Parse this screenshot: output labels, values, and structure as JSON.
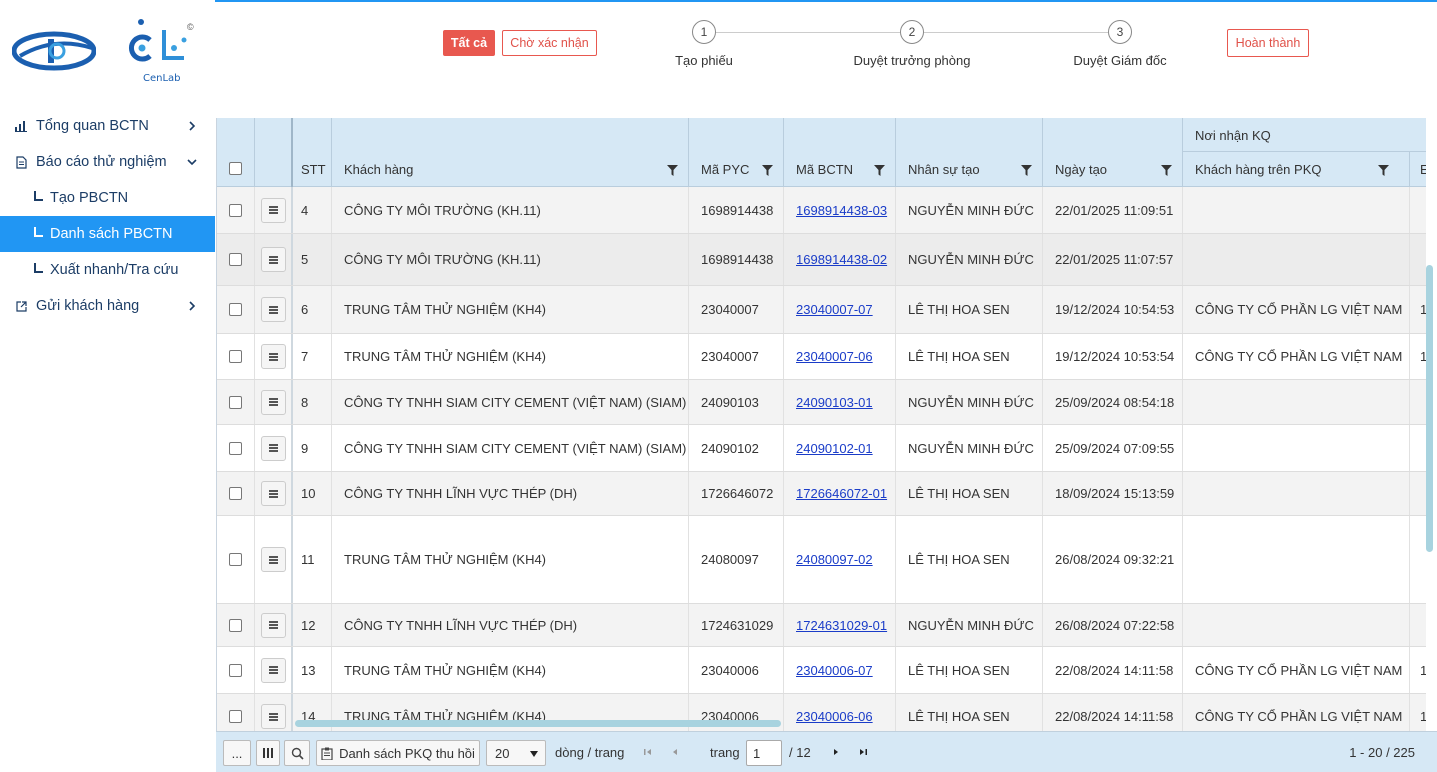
{
  "logo": {
    "brand_text": "CenLab",
    "copyright_mark": "©"
  },
  "sidebar": {
    "items": [
      {
        "label": "Tổng quan BCTN",
        "icon": "bar-chart-icon",
        "chevron": "chevron-right-icon"
      },
      {
        "label": "Báo cáo thử nghiệm",
        "icon": "document-icon",
        "chevron": "chevron-down-icon"
      },
      {
        "label": "Tạo PBCTN"
      },
      {
        "label": "Danh sách PBCTN",
        "active": true
      },
      {
        "label": "Xuất nhanh/Tra cứu"
      },
      {
        "label": "Gửi khách hàng",
        "icon": "external-link-icon",
        "chevron": "chevron-right-icon"
      }
    ]
  },
  "filters": {
    "all_label": "Tất cả",
    "pending_label": "Chờ xác nhận",
    "done_label": "Hoàn thành"
  },
  "steps": [
    {
      "num": "1",
      "label": "Tạo phiếu"
    },
    {
      "num": "2",
      "label": "Duyệt trưởng phòng"
    },
    {
      "num": "3",
      "label": "Duyệt Giám đốc"
    }
  ],
  "grid": {
    "headers": {
      "stt": "STT",
      "customer": "Khách hàng",
      "ma_pyc": "Mã PYC",
      "ma_bctn": "Mã BCTN",
      "creator": "Nhân sự tạo",
      "created": "Ngày tạo",
      "group_receiver": "Nơi nhận KQ",
      "customer_pkq": "Khách hàng trên PKQ",
      "next_col_partial": "E"
    },
    "rows": [
      {
        "stt": "4",
        "customer": "CÔNG TY MÔI TRƯỜNG (KH.11)",
        "ma_pyc": "1698914438",
        "ma_bctn": "1698914438-03",
        "creator": "NGUYỄN MINH ĐỨC",
        "created": "22/01/2025 11:09:51",
        "pkq": "",
        "extra": ""
      },
      {
        "stt": "5",
        "customer": "CÔNG TY MÔI TRƯỜNG (KH.11)",
        "ma_pyc": "1698914438",
        "ma_bctn": "1698914438-02",
        "creator": "NGUYỄN MINH ĐỨC",
        "created": "22/01/2025 11:07:57",
        "pkq": "",
        "extra": ""
      },
      {
        "stt": "6",
        "customer": "TRUNG TÂM THỬ NGHIỆM (KH4)",
        "ma_pyc": "23040007",
        "ma_bctn": "23040007-07",
        "creator": "LÊ THỊ HOA SEN",
        "created": "19/12/2024 10:54:53",
        "pkq": "CÔNG TY CỔ PHẦN LG VIỆT NAM",
        "extra": "1"
      },
      {
        "stt": "7",
        "customer": "TRUNG TÂM THỬ NGHIỆM (KH4)",
        "ma_pyc": "23040007",
        "ma_bctn": "23040007-06",
        "creator": "LÊ THỊ HOA SEN",
        "created": "19/12/2024 10:53:54",
        "pkq": "CÔNG TY CỔ PHẦN LG VIỆT NAM",
        "extra": "1"
      },
      {
        "stt": "8",
        "customer": "CÔNG TY TNHH SIAM CITY CEMENT (VIỆT NAM) (SIAM)",
        "ma_pyc": "24090103",
        "ma_bctn": "24090103-01",
        "creator": "NGUYỄN MINH ĐỨC",
        "created": "25/09/2024 08:54:18",
        "pkq": "",
        "extra": ""
      },
      {
        "stt": "9",
        "customer": "CÔNG TY TNHH SIAM CITY CEMENT (VIỆT NAM) (SIAM)",
        "ma_pyc": "24090102",
        "ma_bctn": "24090102-01",
        "creator": "NGUYỄN MINH ĐỨC",
        "created": "25/09/2024 07:09:55",
        "pkq": "",
        "extra": ""
      },
      {
        "stt": "10",
        "customer": "CÔNG TY TNHH LĨNH VỰC THÉP (DH)",
        "ma_pyc": "1726646072",
        "ma_bctn": "1726646072-01",
        "creator": "LÊ THỊ HOA SEN",
        "created": "18/09/2024 15:13:59",
        "pkq": "",
        "extra": ""
      },
      {
        "stt": "11",
        "customer": "TRUNG TÂM THỬ NGHIỆM (KH4)",
        "ma_pyc": "24080097",
        "ma_bctn": "24080097-02",
        "creator": "LÊ THỊ HOA SEN",
        "created": "26/08/2024 09:32:21",
        "pkq": "",
        "extra": ""
      },
      {
        "stt": "12",
        "customer": "CÔNG TY TNHH LĨNH VỰC THÉP (DH)",
        "ma_pyc": "1724631029",
        "ma_bctn": "1724631029-01",
        "creator": "NGUYỄN MINH ĐỨC",
        "created": "26/08/2024 07:22:58",
        "pkq": "",
        "extra": ""
      },
      {
        "stt": "13",
        "customer": "TRUNG TÂM THỬ NGHIỆM (KH4)",
        "ma_pyc": "23040006",
        "ma_bctn": "23040006-07",
        "creator": "LÊ THỊ HOA SEN",
        "created": "22/08/2024 14:11:58",
        "pkq": "CÔNG TY CỔ PHẦN LG VIỆT NAM",
        "extra": "1"
      },
      {
        "stt": "14",
        "customer": "TRUNG TÂM THỬ NGHIỆM (KH4)",
        "ma_pyc": "23040006",
        "ma_bctn": "23040006-06",
        "creator": "LÊ THỊ HOA SEN",
        "created": "22/08/2024 14:11:58",
        "pkq": "CÔNG TY CỔ PHẦN LG VIỆT NAM",
        "extra": "1"
      }
    ]
  },
  "footer": {
    "more_label": "...",
    "recall_label": "Danh sách PKQ thu hồi",
    "page_size": "20",
    "rows_per_page": "dòng / trang",
    "page_label": "trang",
    "page_value": "1",
    "total_pages": "/ 12",
    "range": "1 - 20 / 225"
  },
  "colors": {
    "accent": "#2196f3",
    "danger": "#e8584f",
    "header_bg": "#d6e8f5",
    "link": "#1a3cc8"
  }
}
